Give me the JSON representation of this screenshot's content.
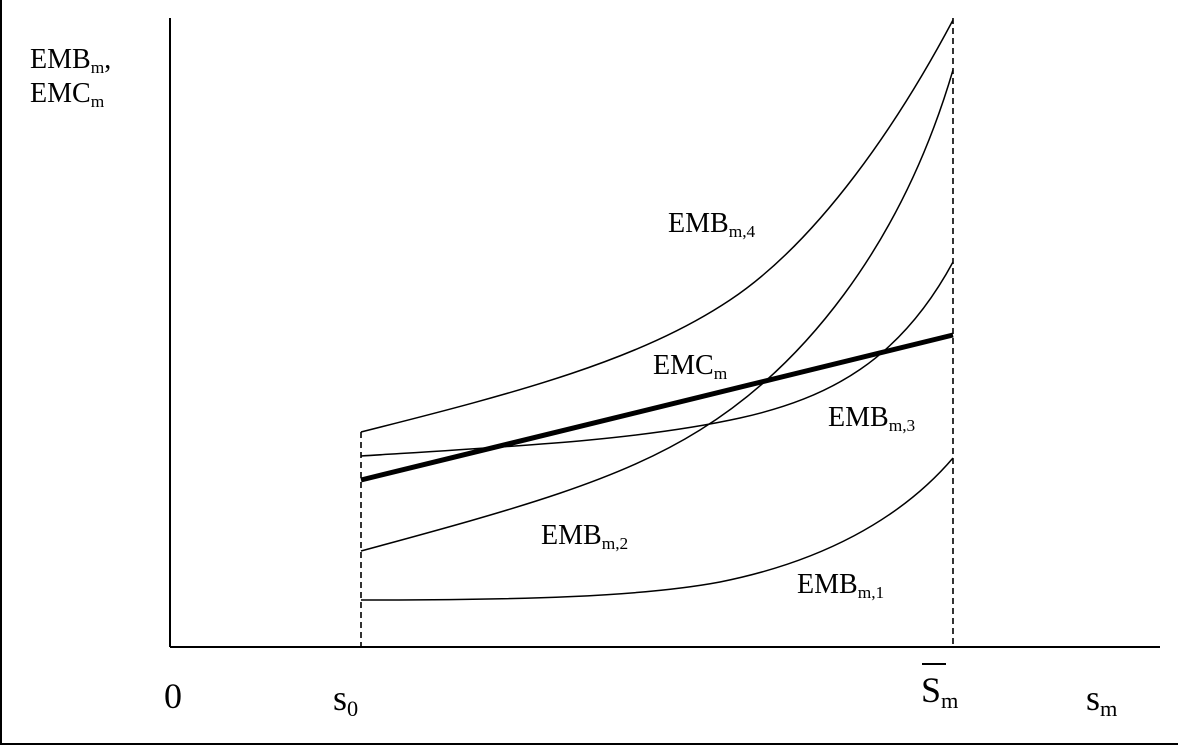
{
  "y_axis_label": {
    "line1": {
      "main": "EMB",
      "sub": "m",
      "suffix": ","
    },
    "line2": {
      "main": "EMC",
      "sub": "m"
    }
  },
  "x_ticks": {
    "origin": "0",
    "s0": {
      "main": "s",
      "sub": "0"
    },
    "smbar": {
      "main": "S",
      "sub": "m"
    },
    "sm": {
      "main": "s",
      "sub": "m"
    }
  },
  "curves": {
    "emb4": {
      "main": "EMB",
      "sub": "m,4"
    },
    "emb3": {
      "main": "EMB",
      "sub": "m,3"
    },
    "emb2": {
      "main": "EMB",
      "sub": "m,2"
    },
    "emb1": {
      "main": "EMB",
      "sub": "m,1"
    },
    "emc": {
      "main": "EMC",
      "sub": "m"
    }
  },
  "colors": {
    "ink": "#000000",
    "background": "#ffffff"
  }
}
